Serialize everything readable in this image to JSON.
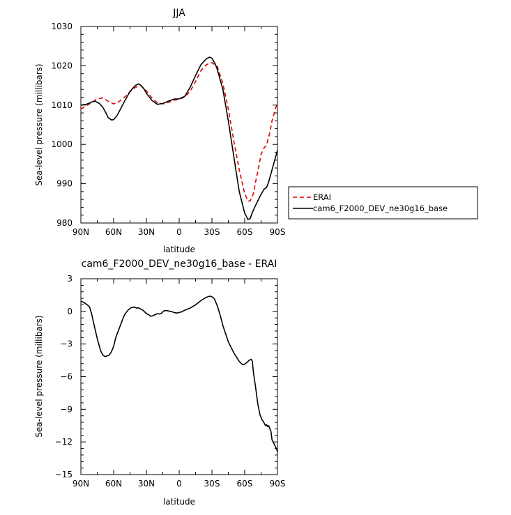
{
  "chart_data": [
    {
      "type": "line",
      "title": "JJA",
      "xlabel": "latitude",
      "ylabel": "Sea-level pressure (millibars)",
      "xlim": [
        -90,
        90
      ],
      "ylim": [
        980,
        1030
      ],
      "x_ticks": [
        -90,
        -60,
        -30,
        0,
        30,
        60,
        90
      ],
      "x_tick_labels": [
        "90N",
        "60N",
        "30N",
        "0",
        "30S",
        "60S",
        "90S"
      ],
      "y_ticks": [
        980,
        990,
        1000,
        1010,
        1020,
        1030
      ],
      "y_tick_labels": [
        "980",
        "990",
        "1000",
        "1010",
        "1020",
        "1030"
      ],
      "legend_position": "right of plot",
      "series": [
        {
          "name": "ERAI",
          "color": "#dd0000",
          "style": "dashed",
          "x": [
            -90,
            -85,
            -80,
            -75,
            -70,
            -65,
            -60,
            -55,
            -50,
            -45,
            -40,
            -35,
            -30,
            -25,
            -20,
            -15,
            -10,
            -5,
            0,
            5,
            10,
            15,
            20,
            25,
            30,
            35,
            40,
            45,
            50,
            55,
            60,
            63,
            65,
            68,
            70,
            73,
            75,
            78,
            80,
            83,
            85,
            88,
            90
          ],
          "y": [
            1009.0,
            1009.8,
            1010.7,
            1011.6,
            1011.8,
            1011.0,
            1010.3,
            1010.9,
            1012.0,
            1013.4,
            1014.5,
            1015.0,
            1013.6,
            1011.8,
            1010.6,
            1010.3,
            1010.7,
            1011.2,
            1011.5,
            1012.0,
            1013.5,
            1016.0,
            1018.8,
            1020.3,
            1020.8,
            1019.8,
            1015.5,
            1009.0,
            1001.0,
            993.5,
            987.5,
            985.6,
            985.6,
            987.5,
            990.5,
            994.5,
            997.5,
            999.2,
            999.8,
            1003.0,
            1006.0,
            1009.0,
            1010.5
          ]
        },
        {
          "name": "cam6_F2000_DEV_ne30g16_base",
          "color": "#000000",
          "style": "solid",
          "x": [
            -90,
            -85,
            -80,
            -77,
            -73,
            -70,
            -67,
            -65,
            -62,
            -60,
            -57,
            -55,
            -50,
            -45,
            -40,
            -37,
            -35,
            -32,
            -30,
            -25,
            -20,
            -15,
            -10,
            -5,
            0,
            5,
            10,
            15,
            20,
            25,
            28,
            30,
            33,
            35,
            40,
            45,
            50,
            55,
            60,
            63,
            65,
            67,
            70,
            73,
            75,
            78,
            80,
            82,
            84,
            86,
            88,
            90
          ],
          "y": [
            1010.0,
            1010.2,
            1010.8,
            1011.0,
            1010.4,
            1009.5,
            1008.0,
            1006.8,
            1006.2,
            1006.3,
            1007.3,
            1008.3,
            1011.0,
            1013.5,
            1015.0,
            1015.4,
            1015.0,
            1014.0,
            1013.0,
            1011.2,
            1010.2,
            1010.4,
            1011.0,
            1011.5,
            1011.6,
            1012.2,
            1014.5,
            1017.5,
            1020.3,
            1021.8,
            1022.2,
            1021.9,
            1020.5,
            1019.0,
            1014.0,
            1006.0,
            997.0,
            988.0,
            982.5,
            980.9,
            981.1,
            982.7,
            984.5,
            986.2,
            987.3,
            988.7,
            989.0,
            990.5,
            992.5,
            994.5,
            996.5,
            998.5
          ]
        }
      ]
    },
    {
      "type": "line",
      "title": "cam6_F2000_DEV_ne30g16_base - ERAI",
      "xlabel": "latitude",
      "ylabel": "Sea-level pressure (millibars)",
      "xlim": [
        -90,
        90
      ],
      "ylim": [
        -15,
        3
      ],
      "x_ticks": [
        -90,
        -60,
        -30,
        0,
        30,
        60,
        90
      ],
      "x_tick_labels": [
        "90N",
        "60N",
        "30N",
        "0",
        "30S",
        "60S",
        "90S"
      ],
      "y_ticks": [
        -15,
        -12,
        -9,
        -6,
        -3,
        0,
        3
      ],
      "y_tick_labels": [
        "−15",
        "−12",
        "−9",
        "−6",
        "−3",
        "0",
        "3"
      ],
      "series": [
        {
          "color": "#000000",
          "style": "solid",
          "x": [
            -90,
            -87,
            -84,
            -82,
            -80,
            -78,
            -75,
            -72,
            -70,
            -68,
            -66,
            -64,
            -62,
            -60,
            -58,
            -55,
            -52,
            -50,
            -47,
            -44,
            -41,
            -39,
            -37,
            -35,
            -33,
            -30,
            -28,
            -26,
            -24,
            -22,
            -20,
            -18,
            -16,
            -14,
            -12,
            -10,
            -8,
            -6,
            -4,
            -2,
            0,
            2,
            5,
            10,
            15,
            20,
            25,
            28,
            30,
            32,
            35,
            38,
            40,
            45,
            50,
            55,
            58,
            60,
            62,
            64,
            66,
            67,
            68,
            70,
            72,
            74,
            76,
            77,
            78,
            79,
            80,
            81,
            82,
            83,
            84,
            85,
            86,
            87,
            88,
            89,
            90
          ],
          "y": [
            0.95,
            0.8,
            0.6,
            0.4,
            -0.3,
            -1.2,
            -2.5,
            -3.6,
            -4.0,
            -4.15,
            -4.1,
            -4.0,
            -3.7,
            -3.2,
            -2.4,
            -1.6,
            -0.8,
            -0.3,
            0.1,
            0.35,
            0.4,
            0.3,
            0.32,
            0.2,
            0.1,
            -0.2,
            -0.3,
            -0.45,
            -0.4,
            -0.3,
            -0.2,
            -0.25,
            -0.15,
            0.05,
            0.08,
            0.05,
            0.0,
            -0.05,
            -0.12,
            -0.15,
            -0.1,
            -0.05,
            0.1,
            0.3,
            0.6,
            1.0,
            1.3,
            1.4,
            1.35,
            1.2,
            0.5,
            -0.5,
            -1.3,
            -2.8,
            -3.8,
            -4.6,
            -4.9,
            -4.85,
            -4.7,
            -4.5,
            -4.4,
            -4.6,
            -5.6,
            -7.0,
            -8.5,
            -9.5,
            -10.0,
            -10.1,
            -10.3,
            -10.5,
            -10.4,
            -10.6,
            -10.5,
            -10.8,
            -11.0,
            -11.8,
            -12.0,
            -12.2,
            -12.4,
            -12.6,
            -12.9
          ]
        }
      ]
    }
  ]
}
